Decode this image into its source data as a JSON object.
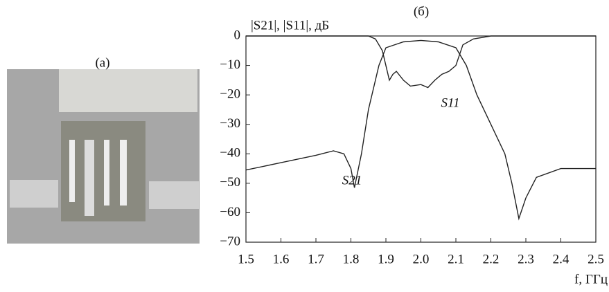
{
  "panel_a_label": "(а)",
  "chart_data": {
    "type": "line",
    "title": "(б)",
    "y_label": "|S21|, |S11|, дБ",
    "x_label": "f, ГГц",
    "xlim": [
      1.5,
      2.5
    ],
    "xticks": [
      1.5,
      1.6,
      1.7,
      1.8,
      1.9,
      {
        "value": 2,
        "label": "2.0"
      },
      2.1,
      2.2,
      2.3,
      2.4,
      2.5
    ],
    "ylim": [
      -70,
      0
    ],
    "yticks": [
      0,
      {
        "value": -10,
        "label": "−10"
      },
      {
        "value": -20,
        "label": "−20"
      },
      {
        "value": -30,
        "label": "−30"
      },
      {
        "value": -40,
        "label": "−40"
      },
      {
        "value": -50,
        "label": "−50"
      },
      {
        "value": -60,
        "label": "−60"
      },
      {
        "value": -70,
        "label": "−70"
      }
    ],
    "grid": false,
    "series": [
      {
        "name": "S21",
        "color": "#222222",
        "x": [
          1.5,
          1.6,
          1.7,
          1.75,
          1.78,
          1.8,
          1.81,
          1.83,
          1.85,
          1.88,
          1.9,
          1.95,
          2.0,
          2.05,
          2.1,
          2.13,
          2.16,
          2.2,
          2.24,
          2.26,
          2.28,
          2.3,
          2.33,
          2.4,
          2.5
        ],
        "values": [
          -45.5,
          -43,
          -40.5,
          -39,
          -40,
          -45,
          -51.5,
          -40,
          -25,
          -10,
          -4,
          -2,
          -1.5,
          -2,
          -4,
          -10,
          -20,
          -30,
          -40,
          -50,
          -62,
          -55,
          -48,
          -45,
          -45
        ]
      },
      {
        "name": "S11",
        "color": "#222222",
        "x": [
          1.5,
          1.85,
          1.87,
          1.89,
          1.91,
          1.92,
          1.93,
          1.95,
          1.97,
          2.0,
          2.02,
          2.04,
          2.06,
          2.08,
          2.1,
          2.12,
          2.15,
          2.2,
          2.5
        ],
        "values": [
          0,
          0,
          -1,
          -5,
          -15,
          -13,
          -12,
          -15,
          -17,
          -16.5,
          -17.5,
          -15,
          -13,
          -12,
          -10,
          -3,
          -1,
          0,
          0
        ]
      }
    ]
  }
}
